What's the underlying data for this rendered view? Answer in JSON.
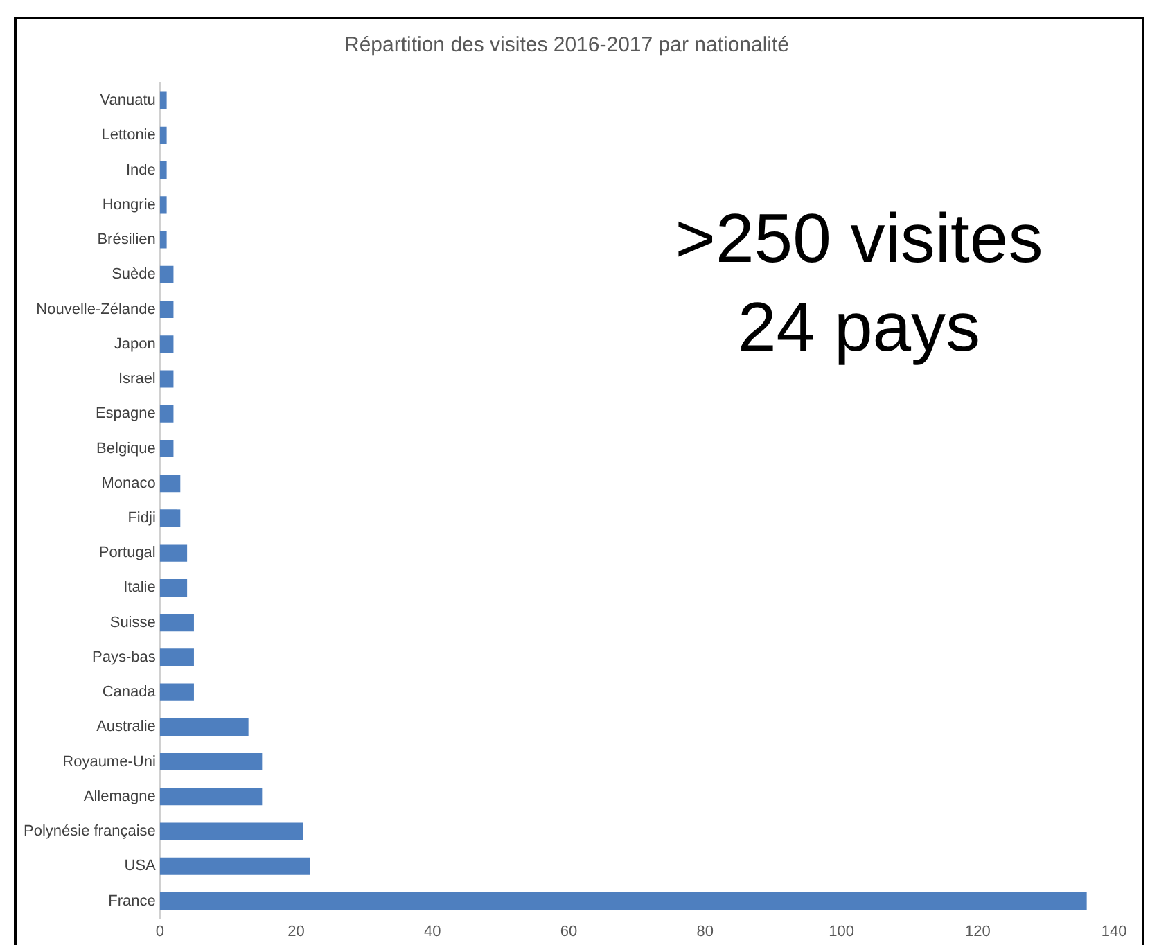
{
  "chart_data": {
    "type": "bar",
    "orientation": "horizontal",
    "title": "Répartition des visites 2016-2017 par nationalité",
    "categories": [
      "Vanuatu",
      "Lettonie",
      "Inde",
      "Hongrie",
      "Brésilien",
      "Suède",
      "Nouvelle-Zélande",
      "Japon",
      "Israel",
      "Espagne",
      "Belgique",
      "Monaco",
      "Fidji",
      "Portugal",
      "Italie",
      "Suisse",
      "Pays-bas",
      "Canada",
      "Australie",
      "Royaume-Uni",
      "Allemagne",
      "Polynésie française",
      "USA",
      "France"
    ],
    "values": [
      1,
      1,
      1,
      1,
      1,
      2,
      2,
      2,
      2,
      2,
      2,
      3,
      3,
      4,
      4,
      5,
      5,
      5,
      13,
      15,
      15,
      21,
      22,
      136
    ],
    "color": "#4e7fbf",
    "xlim": [
      0,
      140
    ],
    "xticks": [
      0,
      20,
      40,
      60,
      80,
      100,
      120,
      140
    ],
    "grid": false,
    "legend": false,
    "annotations": [
      ">250 visites",
      "24 pays"
    ]
  }
}
